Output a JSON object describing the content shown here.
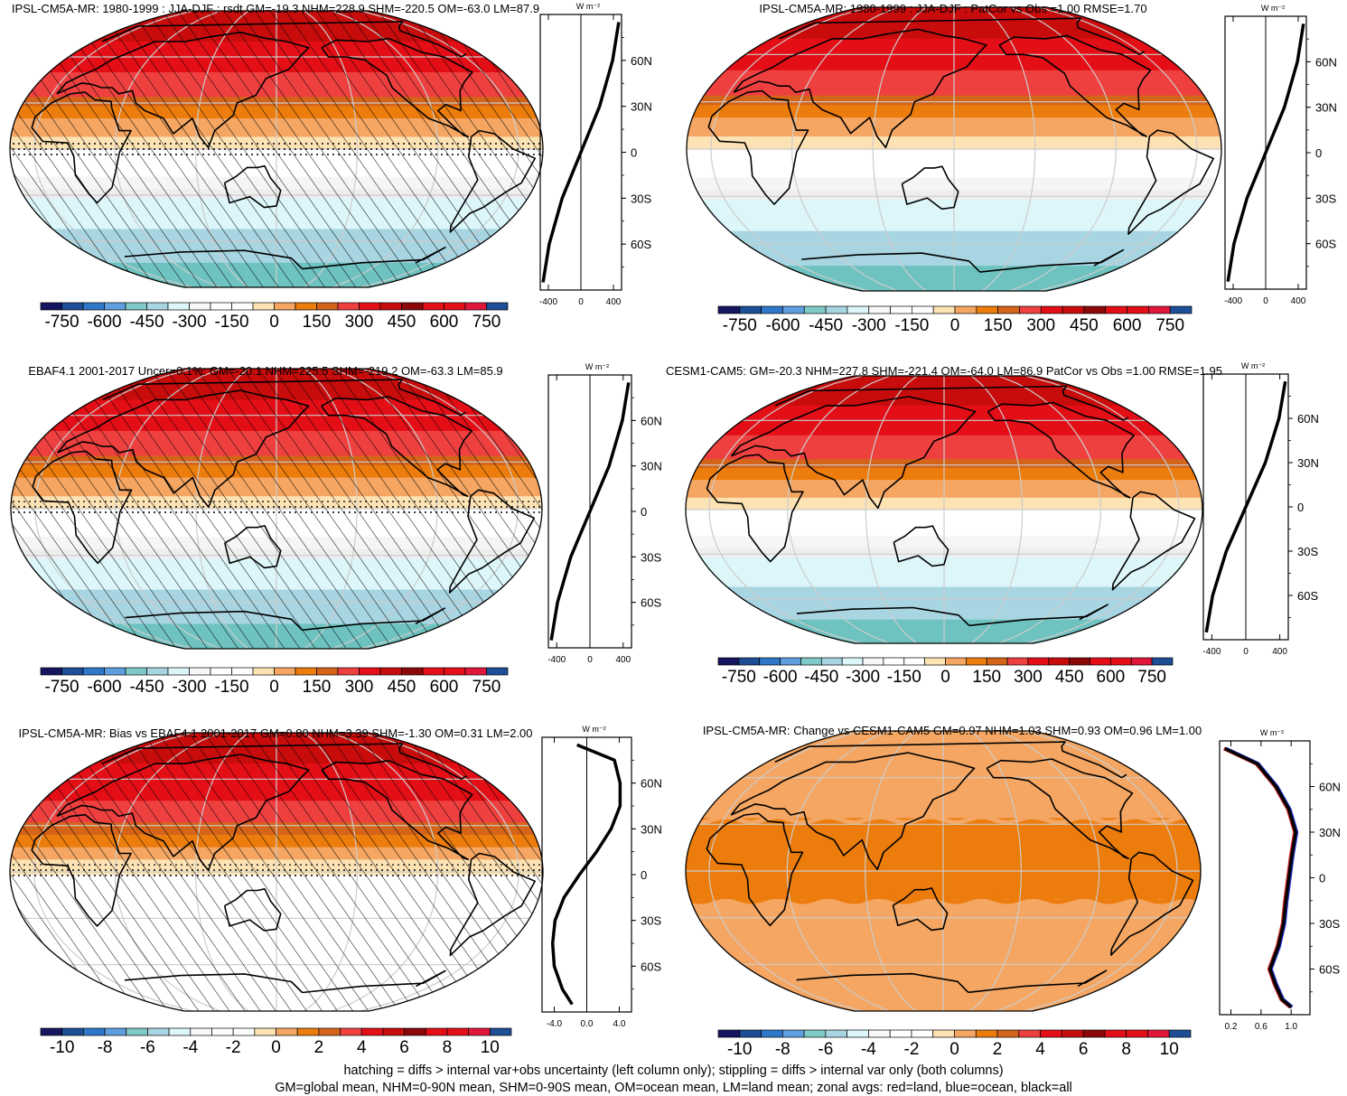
{
  "colors": {
    "scale": [
      "#151560",
      "#1d4e96",
      "#2f77c8",
      "#5f9fe0",
      "#7fcac6",
      "#a8d5e2",
      "#dcf6fa",
      "#f7f7f7",
      "#ffffff",
      "#ffffff",
      "#fde2b4",
      "#f4a662",
      "#ec7c0c",
      "#d4641a",
      "#ef4040",
      "#e30e16",
      "#c80c0c",
      "#8c0808",
      "#e30e16",
      "#e30e16",
      "#e0163a",
      "#1d4e96"
    ],
    "land": "#000000",
    "grid": "#cccccc"
  },
  "unit_label": "W m⁻²",
  "footnote": [
    "hatching = diffs > internal var+obs uncertainty (left column only); stippling = diffs > internal var only (both columns)",
    "GM=global mean, NHM=0-90N mean, SHM=0-90S mean, OM=ocean mean, LM=land mean; zonal avgs: red=land, blue=ocean, black=all"
  ],
  "chart_data": [
    {
      "type": "heatmap",
      "title": "IPSL-CM5A-MR: 1980-1999 : JJA-DJF : rsdt GM=-19.3 NHM=228.9 SHM=-220.5 OM=-63.0 LM=87.9",
      "field": "seasonal_amp",
      "hatched": true,
      "stipple_band": [
        -5,
        5
      ],
      "colorbar": {
        "labels": [
          "-750",
          "-600",
          "-450",
          "-300",
          "-150",
          "0",
          "150",
          "300",
          "450",
          "600",
          "750"
        ]
      },
      "zonal": {
        "x_ticks": [
          "-400",
          "0",
          "400"
        ],
        "x_range": [
          -500,
          500
        ],
        "lat_ticks": [
          "60N",
          "30N",
          "0",
          "30S",
          "60S"
        ],
        "curve": {
          "lat": [
            85,
            60,
            30,
            0,
            -30,
            -60,
            -85
          ],
          "value": [
            465,
            390,
            230,
            0,
            -230,
            -390,
            -465
          ]
        }
      }
    },
    {
      "type": "heatmap",
      "title": "IPSL-CM5A-MR: 1980-1999 : JJA-DJF : PatCor vs Obs =1.00 RMSE=1.70",
      "field": "seasonal_amp",
      "hatched": false,
      "colorbar": {
        "labels": [
          "-750",
          "-600",
          "-450",
          "-300",
          "-150",
          "0",
          "150",
          "300",
          "450",
          "600",
          "750"
        ]
      },
      "zonal": {
        "x_ticks": [
          "-400",
          "0",
          "400"
        ],
        "x_range": [
          -500,
          500
        ],
        "lat_ticks": [
          "60N",
          "30N",
          "0",
          "30S",
          "60S"
        ],
        "curve": {
          "lat": [
            85,
            60,
            30,
            0,
            -30,
            -60,
            -85
          ],
          "value": [
            465,
            390,
            230,
            0,
            -230,
            -390,
            -465
          ]
        }
      }
    },
    {
      "type": "heatmap",
      "title": "EBAF4.1 2001-2017 Uncer=0.1%: GM=-20.1 NHM=225.5 SHM=-219.2 OM=-63.3 LM=85.9",
      "field": "seasonal_amp",
      "hatched": true,
      "stipple_band": [
        -5,
        5
      ],
      "colorbar": {
        "labels": [
          "-750",
          "-600",
          "-450",
          "-300",
          "-150",
          "0",
          "150",
          "300",
          "450",
          "600",
          "750"
        ]
      },
      "zonal": {
        "x_ticks": [
          "-400",
          "0",
          "400"
        ],
        "x_range": [
          -500,
          500
        ],
        "lat_ticks": [
          "60N",
          "30N",
          "0",
          "30S",
          "60S"
        ],
        "curve": {
          "lat": [
            85,
            60,
            30,
            0,
            -30,
            -60,
            -85
          ],
          "value": [
            465,
            390,
            230,
            0,
            -230,
            -390,
            -465
          ]
        }
      }
    },
    {
      "type": "heatmap",
      "title": "CESM1-CAM5: GM=-20.3 NHM=227.8 SHM=-221.4 OM=-64.0 LM=86.9 PatCor vs Obs =1.00 RMSE=1.95",
      "field": "seasonal_amp",
      "hatched": false,
      "colorbar": {
        "labels": [
          "-750",
          "-600",
          "-450",
          "-300",
          "-150",
          "0",
          "150",
          "300",
          "450",
          "600",
          "750"
        ]
      },
      "zonal": {
        "x_ticks": [
          "-400",
          "0",
          "400"
        ],
        "x_range": [
          -500,
          500
        ],
        "lat_ticks": [
          "60N",
          "30N",
          "0",
          "30S",
          "60S"
        ],
        "curve": {
          "lat": [
            85,
            60,
            30,
            0,
            -30,
            -60,
            -85
          ],
          "value": [
            465,
            390,
            230,
            0,
            -230,
            -390,
            -465
          ]
        }
      }
    },
    {
      "type": "heatmap",
      "title": "IPSL-CM5A-MR: Bias vs EBAF4.1 2001-2017 GM=0.80 NHM=3.39 SHM=-1.30 OM=0.31 LM=2.00",
      "field": "bias",
      "hatched": true,
      "stipple_band": [
        -5,
        5
      ],
      "colorbar": {
        "labels": [
          "-10",
          "-8",
          "-6",
          "-4",
          "-2",
          "0",
          "2",
          "4",
          "6",
          "8",
          "10"
        ]
      },
      "zonal": {
        "x_ticks": [
          "-4.0",
          "0.0",
          "4.0"
        ],
        "x_range": [
          -5.5,
          5.5
        ],
        "lat_ticks": [
          "60N",
          "30N",
          "0",
          "30S",
          "60S"
        ],
        "curve": {
          "lat": [
            85,
            75,
            60,
            45,
            30,
            15,
            0,
            -15,
            -30,
            -45,
            -60,
            -75,
            -85
          ],
          "value": [
            -1.2,
            3.4,
            4.1,
            4.1,
            3.0,
            1.2,
            -0.9,
            -2.8,
            -3.9,
            -4.2,
            -4.0,
            -3.0,
            -1.8
          ]
        }
      }
    },
    {
      "type": "heatmap",
      "title": "IPSL-CM5A-MR: Change vs CESM1-CAM5 GM=0.97 NHM=1.03 SHM=0.93 OM=0.96 LM=1.00",
      "field": "ratio",
      "hatched": false,
      "colorbar": {
        "labels": [
          "-10",
          "-8",
          "-6",
          "-4",
          "-2",
          "0",
          "2",
          "4",
          "6",
          "8",
          "10"
        ]
      },
      "zonal": {
        "x_ticks": [
          "0.2",
          "0.6",
          "1.0"
        ],
        "x_range": [
          0.05,
          1.25
        ],
        "lat_ticks": [
          "60N",
          "30N",
          "0",
          "30S",
          "60S"
        ],
        "curve": {
          "lat": [
            85,
            75,
            60,
            45,
            30,
            15,
            0,
            -15,
            -30,
            -45,
            -60,
            -70,
            -80,
            -85
          ],
          "value": [
            0.12,
            0.55,
            0.8,
            0.97,
            1.06,
            1.01,
            0.97,
            0.93,
            0.9,
            0.83,
            0.72,
            0.79,
            0.88,
            1.0
          ]
        }
      }
    }
  ]
}
